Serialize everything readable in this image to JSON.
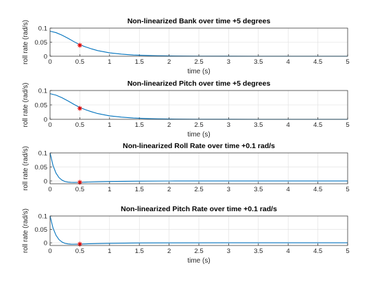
{
  "chart_data": [
    {
      "type": "line",
      "title": "Non-linearized Bank over time +5 degrees",
      "xlabel": "time (s)",
      "ylabel": "roll rate (rad/s)",
      "xlim": [
        0,
        5
      ],
      "ylim": [
        0,
        0.1
      ],
      "xticks": [
        "0",
        "0.5",
        "1",
        "1.5",
        "2",
        "2.5",
        "3",
        "3.5",
        "4",
        "4.5",
        "5"
      ],
      "yticks": [
        "0",
        "0.05",
        "0.1"
      ],
      "grid": true,
      "series": [
        {
          "x": [
            0,
            0.1,
            0.2,
            0.3,
            0.4,
            0.5,
            0.6,
            0.7,
            0.8,
            0.9,
            1,
            1.2,
            1.4,
            1.6,
            1.8,
            2,
            2.5,
            3,
            3.5,
            4,
            4.5,
            5
          ],
          "y": [
            0.089,
            0.084,
            0.075,
            0.064,
            0.052,
            0.041,
            0.033,
            0.026,
            0.02,
            0.016,
            0.012,
            0.0075,
            0.0045,
            0.0028,
            0.0017,
            0.001,
            0.0003,
            0.0001,
            0,
            0,
            0,
            0
          ]
        }
      ],
      "markers": [
        {
          "x": 0.5,
          "y": 0.039,
          "symbol": "asterisk",
          "color": "#e00000"
        }
      ]
    },
    {
      "type": "line",
      "title": "Non-linearized Pitch over time +5 degrees",
      "xlabel": "time (s)",
      "ylabel": "roll rate (rad/s)",
      "xlim": [
        0,
        5
      ],
      "ylim": [
        0,
        0.1
      ],
      "xticks": [
        "0",
        "0.5",
        "1",
        "1.5",
        "2",
        "2.5",
        "3",
        "3.5",
        "4",
        "4.5",
        "5"
      ],
      "yticks": [
        "0",
        "0.05",
        "0.1"
      ],
      "grid": true,
      "series": [
        {
          "x": [
            0,
            0.1,
            0.2,
            0.3,
            0.4,
            0.5,
            0.6,
            0.7,
            0.8,
            0.9,
            1,
            1.2,
            1.4,
            1.6,
            1.8,
            2,
            2.5,
            3,
            3.5,
            4,
            4.5,
            5
          ],
          "y": [
            0.089,
            0.084,
            0.075,
            0.064,
            0.052,
            0.041,
            0.033,
            0.026,
            0.02,
            0.016,
            0.012,
            0.0075,
            0.0045,
            0.0028,
            0.0017,
            0.001,
            0.0003,
            0.0001,
            0,
            0,
            0,
            0
          ]
        }
      ],
      "markers": [
        {
          "x": 0.5,
          "y": 0.038,
          "symbol": "asterisk",
          "color": "#e00000"
        }
      ]
    },
    {
      "type": "line",
      "title": "Non-linearized Roll Rate over time +0.1 rad/s",
      "xlabel": "",
      "ylabel": "roll rate (rad/s)",
      "xlim": [
        0,
        5
      ],
      "ylim": [
        -0.01,
        0.1
      ],
      "xticks": [
        "0",
        "0.5",
        "1",
        "1.5",
        "2",
        "2.5",
        "3",
        "3.5",
        "4",
        "4.5",
        "5"
      ],
      "yticks": [
        "0",
        "0.05",
        "0.1"
      ],
      "grid": true,
      "series": [
        {
          "x": [
            0,
            0.05,
            0.1,
            0.15,
            0.2,
            0.25,
            0.3,
            0.35,
            0.4,
            0.5,
            0.6,
            0.8,
            1,
            1.5,
            2,
            3,
            4,
            5
          ],
          "y": [
            0.1,
            0.055,
            0.028,
            0.012,
            0.003,
            -0.002,
            -0.004,
            -0.005,
            -0.0052,
            -0.0048,
            -0.004,
            -0.0028,
            -0.0018,
            -0.0007,
            -0.0002,
            0,
            0,
            0
          ]
        }
      ],
      "markers": [
        {
          "x": 0.5,
          "y": -0.005,
          "symbol": "asterisk",
          "color": "#e00000"
        }
      ]
    },
    {
      "type": "line",
      "title": "Non-linearized Pitch Rate over time +0.1 rad/s",
      "xlabel": "time (s)",
      "ylabel": "roll rate (rad/s)",
      "xlim": [
        0,
        5
      ],
      "ylim": [
        -0.01,
        0.1
      ],
      "xticks": [
        "0",
        "0.5",
        "1",
        "1.5",
        "2",
        "2.5",
        "3",
        "3.5",
        "4",
        "4.5",
        "5"
      ],
      "yticks": [
        "0",
        "0.05",
        "0.1"
      ],
      "grid": true,
      "series": [
        {
          "x": [
            0,
            0.05,
            0.1,
            0.15,
            0.2,
            0.25,
            0.3,
            0.35,
            0.4,
            0.5,
            0.6,
            0.8,
            1,
            1.5,
            2,
            3,
            4,
            5
          ],
          "y": [
            0.1,
            0.055,
            0.028,
            0.012,
            0.003,
            -0.002,
            -0.004,
            -0.005,
            -0.0052,
            -0.0048,
            -0.004,
            -0.0028,
            -0.0018,
            -0.0007,
            -0.0002,
            0,
            0,
            0
          ]
        }
      ],
      "markers": [
        {
          "x": 0.5,
          "y": -0.005,
          "symbol": "asterisk",
          "color": "#e00000"
        }
      ]
    }
  ]
}
